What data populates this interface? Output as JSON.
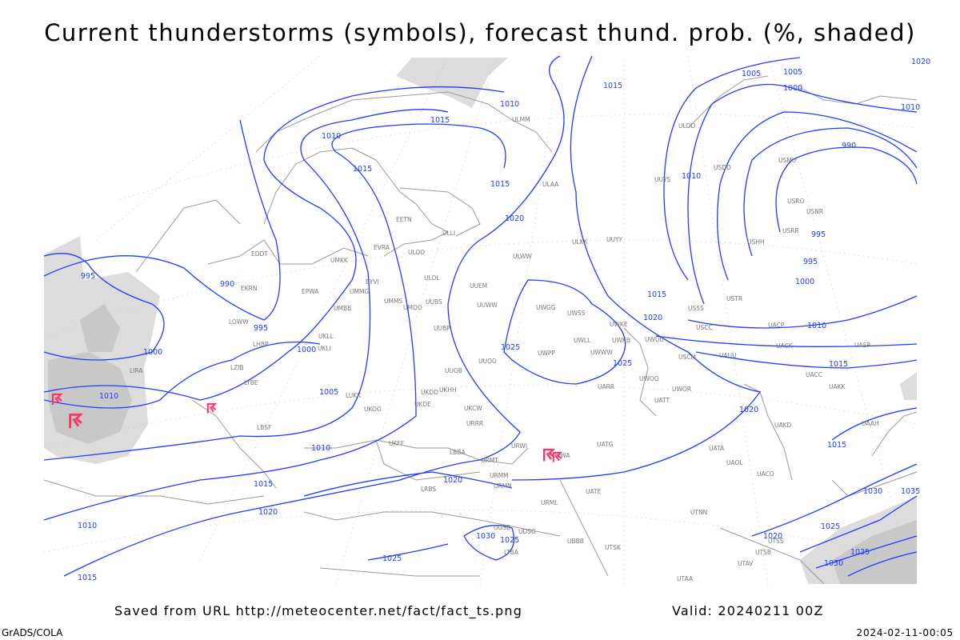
{
  "title": "Current thunderstorms (symbols), forecast thund. prob. (%, shaded)",
  "footer": {
    "saved": "Saved from URL http://meteocenter.net/fact/fact_ts.png",
    "valid": "Valid: 20240211 00Z",
    "software": "GrADS/COLA",
    "timestamp": "2024-02-11-00:05"
  },
  "colors": {
    "isobar": "#1f3cff",
    "coastline": "#9a9a9a",
    "thunderstorm_symbol": "#ff3366",
    "probability_shading": [
      "#dcdcdc",
      "#c8c8c8"
    ]
  },
  "legend_symbols": {
    "thunderstorm": "thunderstorm-symbol-icon"
  },
  "isobar_labels": [
    "1015",
    "1010",
    "1015",
    "1010",
    "1015",
    "1015",
    "1020",
    "1020",
    "1025",
    "1025",
    "1015",
    "1020",
    "1010",
    "1005",
    "1000",
    "995",
    "990",
    "995",
    "1000",
    "1010",
    "995",
    "990",
    "995",
    "1000",
    "1005",
    "1000",
    "1005",
    "1010",
    "1015",
    "1020",
    "1010",
    "1020",
    "1025",
    "1030",
    "1025",
    "1035",
    "1030",
    "1020",
    "1015",
    "1025",
    "1030",
    "1035",
    "1010",
    "1015",
    "1020",
    "1015",
    "1010"
  ],
  "stations": [
    "ULAA",
    "ULMM",
    "ULLI",
    "EETN",
    "EVRA",
    "ULOO",
    "ULOL",
    "UMKK",
    "EYVI",
    "UMMG",
    "UMBB",
    "EPWA",
    "EKRN",
    "EDDT",
    "LOWW",
    "LHBP",
    "UKLL",
    "UKLI",
    "LZIB",
    "LIRA",
    "LYBE",
    "LBSF",
    "LUKK",
    "UKOO",
    "UKHH",
    "UKDD",
    "UKDE",
    "UKFF",
    "URRR",
    "UKCW",
    "UUOB",
    "UUOO",
    "UMMS",
    "UMOO",
    "UUBS",
    "UUBP",
    "UUEM",
    "UUWW",
    "ULWW",
    "ULKK",
    "UUYY",
    "UUYS",
    "ULDD",
    "USDD",
    "USMU",
    "USRO",
    "USNR",
    "USRR",
    "USHH",
    "USTR",
    "USSS",
    "USCC",
    "USCM",
    "UAUU",
    "UACP",
    "UACK",
    "UACC",
    "UAKK",
    "UASP",
    "UATT",
    "UWOR",
    "UWOO",
    "UARR",
    "UWWW",
    "UWUU",
    "UWKE",
    "UWKB",
    "UWLL",
    "UWPP",
    "UWGG",
    "UWSS",
    "URWA",
    "URWI",
    "URMT",
    "URMM",
    "URMN",
    "URML",
    "UATG",
    "UATE",
    "UATA",
    "UAOL",
    "UACO",
    "UAKD",
    "UAAH",
    "UBBB",
    "UTSK",
    "UTAA",
    "UTNN",
    "UTSS",
    "UTSB",
    "UTAV",
    "UGSB",
    "UDSG",
    "LRBS",
    "LBBA",
    "LTBA"
  ]
}
